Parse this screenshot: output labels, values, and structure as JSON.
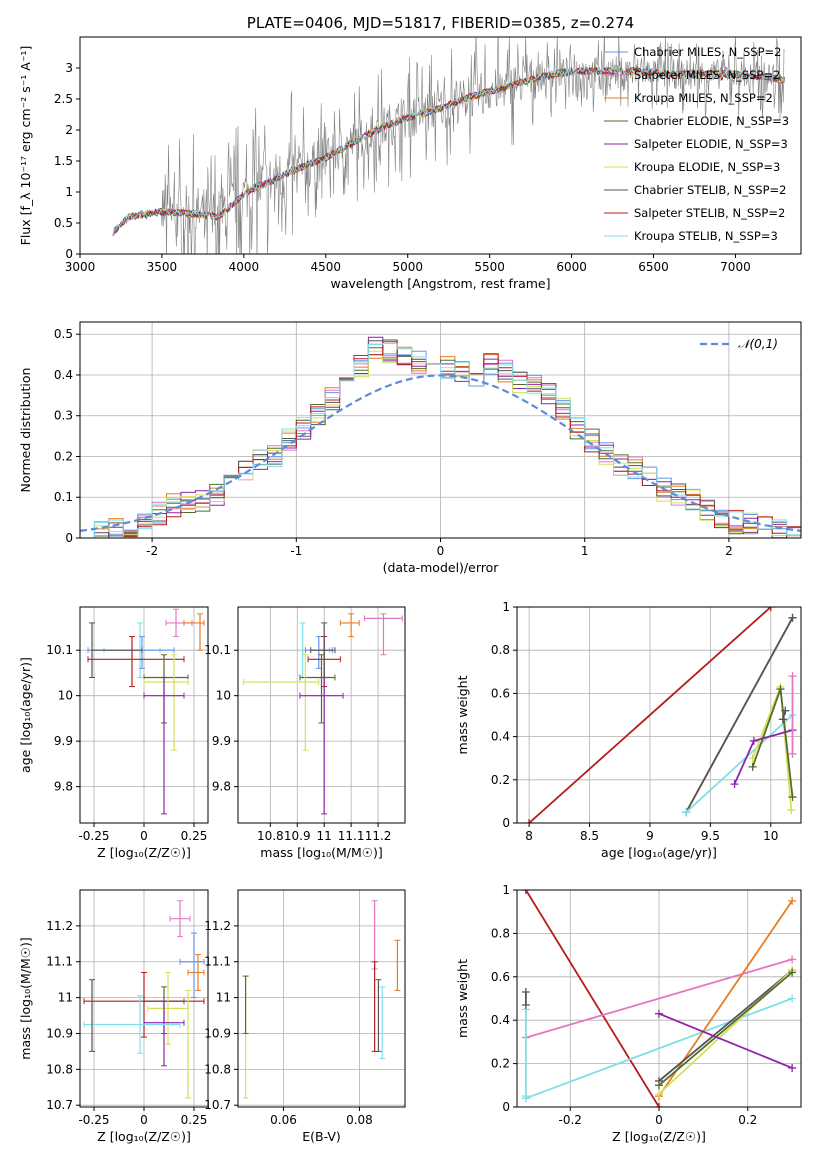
{
  "chart_data": [
    {
      "type": "line",
      "title": "PLATE=0406, MJD=51817, FIBERID=0385, z=0.274",
      "xlabel": "wavelength [Angstrom, rest frame]",
      "ylabel": "Flux [f_λ 10⁻¹⁷ erg cm⁻² s⁻¹ A⁻¹]",
      "xlim": [
        3000,
        7400
      ],
      "ylim": [
        0,
        3.5
      ],
      "xticks": [
        3000,
        3500,
        4000,
        4500,
        5000,
        5500,
        6000,
        6500,
        7000
      ],
      "yticks": [
        0.0,
        0.5,
        1.0,
        1.5,
        2.0,
        2.5,
        3.0
      ],
      "grid": false,
      "legend_position": "top-right",
      "data_color": "#808080",
      "data_range": [
        3200,
        7300
      ],
      "continuum": {
        "x": [
          3200,
          3300,
          3500,
          3700,
          3850,
          3950,
          4050,
          4150,
          4300,
          4500,
          4700,
          4850,
          5000,
          5200,
          5400,
          5600,
          5800,
          6000,
          6200,
          6400,
          6600,
          6800,
          7000,
          7200,
          7300
        ],
        "y": [
          0.35,
          0.6,
          0.68,
          0.65,
          0.6,
          0.85,
          1.05,
          1.15,
          1.35,
          1.55,
          1.85,
          2.05,
          2.2,
          2.35,
          2.55,
          2.7,
          2.85,
          2.95,
          2.95,
          2.95,
          2.9,
          2.9,
          2.9,
          2.85,
          2.8
        ]
      },
      "series": [
        {
          "name": "Chabrier MILES, N_SSP=2",
          "color": "#6495ED"
        },
        {
          "name": "Salpeter MILES, N_SSP=2",
          "color": "#E377C2"
        },
        {
          "name": "Kroupa MILES, N_SSP=2",
          "color": "#E67E22"
        },
        {
          "name": "Chabrier ELODIE, N_SSP=3",
          "color": "#556B2F"
        },
        {
          "name": "Salpeter ELODIE, N_SSP=3",
          "color": "#8E24AA"
        },
        {
          "name": "Kroupa ELODIE, N_SSP=3",
          "color": "#D4E157"
        },
        {
          "name": "Chabrier STELIB, N_SSP=2",
          "color": "#555555"
        },
        {
          "name": "Salpeter STELIB, N_SSP=2",
          "color": "#B71C1C"
        },
        {
          "name": "Kroupa STELIB, N_SSP=3",
          "color": "#80DEEA"
        }
      ]
    },
    {
      "type": "histogram",
      "xlabel": "(data-model)/error",
      "ylabel": "Normed distribution",
      "xlim": [
        -2.5,
        2.5
      ],
      "ylim": [
        0,
        0.53
      ],
      "xticks": [
        -2,
        -1,
        0,
        1,
        2
      ],
      "yticks": [
        0.0,
        0.1,
        0.2,
        0.3,
        0.4,
        0.5
      ],
      "grid": true,
      "legend_position": "top-right",
      "reference_curve": {
        "name": "𝒩(0,1)",
        "color": "#5B8BD9",
        "style": "dashed"
      },
      "bin_width": 0.1,
      "bin_centers": [
        -2.45,
        -2.35,
        -2.25,
        -2.15,
        -2.05,
        -1.95,
        -1.85,
        -1.75,
        -1.65,
        -1.55,
        -1.45,
        -1.35,
        -1.25,
        -1.15,
        -1.05,
        -0.95,
        -0.85,
        -0.75,
        -0.65,
        -0.55,
        -0.45,
        -0.35,
        -0.25,
        -0.15,
        -0.05,
        0.05,
        0.15,
        0.25,
        0.35,
        0.45,
        0.55,
        0.65,
        0.75,
        0.85,
        0.95,
        1.05,
        1.15,
        1.25,
        1.35,
        1.45,
        1.55,
        1.65,
        1.75,
        1.85,
        1.95,
        2.05,
        2.15,
        2.25,
        2.35,
        2.45
      ],
      "values": [
        0.01,
        0.01,
        0.02,
        0.03,
        0.04,
        0.06,
        0.08,
        0.09,
        0.09,
        0.11,
        0.14,
        0.16,
        0.19,
        0.2,
        0.24,
        0.27,
        0.3,
        0.34,
        0.38,
        0.42,
        0.47,
        0.46,
        0.45,
        0.43,
        0.43,
        0.42,
        0.41,
        0.4,
        0.43,
        0.41,
        0.38,
        0.37,
        0.35,
        0.32,
        0.27,
        0.24,
        0.21,
        0.18,
        0.17,
        0.15,
        0.12,
        0.11,
        0.09,
        0.07,
        0.05,
        0.04,
        0.04,
        0.03,
        0.02,
        0.01
      ],
      "series_colors": [
        "#6495ED",
        "#E377C2",
        "#E67E22",
        "#556B2F",
        "#8E24AA",
        "#D4E157",
        "#555555",
        "#B71C1C",
        "#80DEEA"
      ]
    },
    {
      "type": "scatter",
      "xlabel": "Z [log₁₀(Z/Z☉)]",
      "ylabel": "age  [log₁₀(age/yr)]",
      "xlim": [
        -0.32,
        0.32
      ],
      "ylim": [
        9.72,
        10.195
      ],
      "xticks": [
        -0.25,
        0.0,
        0.25
      ],
      "yticks": [
        9.8,
        9.9,
        10.0,
        10.1
      ],
      "grid": true,
      "points": [
        {
          "x": -0.02,
          "y": 10.1,
          "xerr": [
            0.18,
            0.1
          ],
          "yerr": [
            0.06,
            0.06
          ],
          "color": "#80DEEA"
        },
        {
          "x": 0.16,
          "y": 10.16,
          "xerr": [
            0.05,
            0.08
          ],
          "yerr": [
            0.03,
            0.03
          ],
          "color": "#E377C2"
        },
        {
          "x": 0.28,
          "y": 10.16,
          "xerr": [
            0.08,
            0.02
          ],
          "yerr": [
            0.06,
            0.02
          ],
          "color": "#E67E22"
        },
        {
          "x": -0.01,
          "y": 10.1,
          "xerr": [
            0.27,
            0.16
          ],
          "yerr": [
            0.04,
            0.03
          ],
          "color": "#6495ED"
        },
        {
          "x": -0.06,
          "y": 10.08,
          "xerr": [
            0.22,
            0.26
          ],
          "yerr": [
            0.06,
            0.05
          ],
          "color": "#B71C1C"
        },
        {
          "x": 0.1,
          "y": 10.04,
          "xerr": [
            0.1,
            0.12
          ],
          "yerr": [
            0.1,
            0.05
          ],
          "color": "#556B2F"
        },
        {
          "x": 0.15,
          "y": 10.03,
          "xerr": [
            0.15,
            0.07
          ],
          "yerr": [
            0.15,
            0.06
          ],
          "color": "#D4E157"
        },
        {
          "x": 0.1,
          "y": 10.0,
          "xerr": [
            0.1,
            0.1
          ],
          "yerr": [
            0.26,
            0.04
          ],
          "color": "#8E24AA"
        },
        {
          "x": -0.26,
          "y": 10.1,
          "xerr": [
            0.0,
            0.25
          ],
          "yerr": [
            0.06,
            0.06
          ],
          "color": "#555555"
        }
      ]
    },
    {
      "type": "scatter",
      "xlabel": "mass [log₁₀(M/M☉)]",
      "ylabel": "",
      "xlim": [
        10.68,
        11.3
      ],
      "ylim": [
        9.72,
        10.195
      ],
      "xticks": [
        10.8,
        10.9,
        11.0,
        11.1,
        11.2
      ],
      "yticks": [
        9.8,
        9.9,
        10.0,
        10.1
      ],
      "grid": true,
      "points": [
        {
          "x": 10.92,
          "y": 10.1,
          "xerr": [
            0.0,
            0.1
          ],
          "yerr": [
            0.06,
            0.06
          ],
          "color": "#80DEEA"
        },
        {
          "x": 11.22,
          "y": 10.17,
          "xerr": [
            0.07,
            0.07
          ],
          "yerr": [
            0.08,
            0.01
          ],
          "color": "#E377C2"
        },
        {
          "x": 11.1,
          "y": 10.16,
          "xerr": [
            0.04,
            0.03
          ],
          "yerr": [
            0.03,
            0.02
          ],
          "color": "#E67E22"
        },
        {
          "x": 10.98,
          "y": 10.1,
          "xerr": [
            0.05,
            0.05
          ],
          "yerr": [
            0.04,
            0.03
          ],
          "color": "#6495ED"
        },
        {
          "x": 11.0,
          "y": 10.08,
          "xerr": [
            0.06,
            0.06
          ],
          "yerr": [
            0.06,
            0.05
          ],
          "color": "#B71C1C"
        },
        {
          "x": 10.99,
          "y": 10.04,
          "xerr": [
            0.08,
            0.05
          ],
          "yerr": [
            0.1,
            0.05
          ],
          "color": "#556B2F"
        },
        {
          "x": 10.93,
          "y": 10.03,
          "xerr": [
            0.23,
            0.05
          ],
          "yerr": [
            0.15,
            0.06
          ],
          "color": "#D4E157"
        },
        {
          "x": 11.0,
          "y": 10.0,
          "xerr": [
            0.09,
            0.07
          ],
          "yerr": [
            0.26,
            0.04
          ],
          "color": "#8E24AA"
        },
        {
          "x": 11.0,
          "y": 10.1,
          "xerr": [
            0.05,
            0.04
          ],
          "yerr": [
            0.06,
            0.06
          ],
          "color": "#555555"
        }
      ]
    },
    {
      "type": "line",
      "xlabel": "age  [log₁₀(age/yr)]",
      "ylabel": "mass weight",
      "xlim": [
        7.9,
        10.25
      ],
      "ylim": [
        0,
        1.0
      ],
      "xticks": [
        8.0,
        8.5,
        9.0,
        9.5,
        10.0
      ],
      "yticks": [
        0.0,
        0.2,
        0.4,
        0.6,
        0.8,
        1.0
      ],
      "grid": true,
      "series": [
        {
          "color": "#B71C1C",
          "points": [
            [
              8.0,
              0.0
            ],
            [
              10.0,
              1.0
            ]
          ]
        },
        {
          "color": "#E67E22",
          "points": [
            [
              9.3,
              0.05
            ],
            [
              10.18,
              0.95
            ]
          ]
        },
        {
          "color": "#555555",
          "points": [
            [
              9.3,
              0.05
            ],
            [
              10.18,
              0.95
            ]
          ]
        },
        {
          "color": "#80DEEA",
          "points": [
            [
              9.3,
              0.05
            ],
            [
              10.18,
              0.5
            ]
          ]
        },
        {
          "color": "#D4E157",
          "points": [
            [
              9.85,
              0.3
            ],
            [
              10.08,
              0.63
            ],
            [
              10.17,
              0.06
            ]
          ]
        },
        {
          "color": "#556B2F",
          "points": [
            [
              9.85,
              0.26
            ],
            [
              10.08,
              0.62
            ],
            [
              10.18,
              0.12
            ]
          ]
        },
        {
          "color": "#8E24AA",
          "points": [
            [
              9.7,
              0.18
            ],
            [
              9.86,
              0.38
            ],
            [
              10.18,
              0.43
            ]
          ]
        },
        {
          "color": "#E377C2",
          "points": [
            [
              10.18,
              0.32
            ],
            [
              10.18,
              0.68
            ]
          ]
        },
        {
          "color": "#555555",
          "points": [
            [
              10.1,
              0.48
            ],
            [
              10.12,
              0.52
            ]
          ]
        }
      ]
    },
    {
      "type": "scatter",
      "xlabel": "Z [log₁₀(Z/Z☉)]",
      "ylabel": "mass [log₁₀(M/M☉)]",
      "xlim": [
        -0.32,
        0.32
      ],
      "ylim": [
        10.695,
        11.3
      ],
      "xticks": [
        -0.25,
        0.0,
        0.25
      ],
      "yticks": [
        10.7,
        10.8,
        10.9,
        11.0,
        11.1,
        11.2
      ],
      "grid": true,
      "points": [
        {
          "x": 0.18,
          "y": 11.22,
          "xerr": [
            0.05,
            0.05
          ],
          "yerr": [
            0.05,
            0.05
          ],
          "color": "#E377C2"
        },
        {
          "x": 0.27,
          "y": 11.07,
          "xerr": [
            0.05,
            0.03
          ],
          "yerr": [
            0.05,
            0.05
          ],
          "color": "#E67E22"
        },
        {
          "x": 0.25,
          "y": 11.1,
          "xerr": [
            0.07,
            0.05
          ],
          "yerr": [
            0.1,
            0.08
          ],
          "color": "#6495ED"
        },
        {
          "x": 0.1,
          "y": 10.99,
          "xerr": [
            0.1,
            0.1
          ],
          "yerr": [
            0.09,
            0.04
          ],
          "color": "#556B2F"
        },
        {
          "x": 0.0,
          "y": 10.99,
          "xerr": [
            0.3,
            0.3
          ],
          "yerr": [
            0.1,
            0.08
          ],
          "color": "#B71C1C"
        },
        {
          "x": 0.12,
          "y": 10.97,
          "xerr": [
            0.1,
            0.1
          ],
          "yerr": [
            0.1,
            0.1
          ],
          "color": "#D4E157"
        },
        {
          "x": 0.22,
          "y": 10.92,
          "xerr": [
            0.0,
            0.0
          ],
          "yerr": [
            0.2,
            0.1
          ],
          "color": "#D4E157"
        },
        {
          "x": 0.1,
          "y": 10.93,
          "xerr": [
            0.1,
            0.1
          ],
          "yerr": [
            0.12,
            0.06
          ],
          "color": "#8E24AA"
        },
        {
          "x": -0.02,
          "y": 10.925,
          "xerr": [
            0.28,
            0.2
          ],
          "yerr": [
            0.08,
            0.08
          ],
          "color": "#80DEEA"
        },
        {
          "x": -0.26,
          "y": 10.95,
          "xerr": [
            0.0,
            0.0
          ],
          "yerr": [
            0.1,
            0.1
          ],
          "color": "#555555"
        }
      ]
    },
    {
      "type": "scatter",
      "xlabel": "E(B-V)",
      "ylabel": "",
      "xlim": [
        0.048,
        0.092
      ],
      "ylim": [
        10.695,
        11.3
      ],
      "xticks": [
        0.06,
        0.08
      ],
      "yticks": [
        10.7,
        10.8,
        10.9,
        11.0,
        11.1,
        11.2
      ],
      "grid": true,
      "points": [
        {
          "x": 0.05,
          "y": 10.9,
          "yerr": [
            0.18,
            0.16
          ],
          "color": "#D4E157"
        },
        {
          "x": 0.05,
          "y": 10.98,
          "yerr": [
            0.08,
            0.08
          ],
          "color": "#556B2F"
        },
        {
          "x": 0.084,
          "y": 11.18,
          "yerr": [
            0.1,
            0.09
          ],
          "color": "#E377C2"
        },
        {
          "x": 0.084,
          "y": 11.0,
          "yerr": [
            0.15,
            0.1
          ],
          "color": "#B71C1C"
        },
        {
          "x": 0.085,
          "y": 10.95,
          "yerr": [
            0.1,
            0.1
          ],
          "color": "#555555"
        },
        {
          "x": 0.086,
          "y": 10.93,
          "yerr": [
            0.1,
            0.1
          ],
          "color": "#80DEEA"
        },
        {
          "x": 0.09,
          "y": 11.1,
          "yerr": [
            0.08,
            0.06
          ],
          "color": "#E67E22"
        }
      ]
    },
    {
      "type": "line",
      "xlabel": "Z [log₁₀(Z/Z☉)]",
      "ylabel": "mass weight",
      "xlim": [
        -0.32,
        0.32
      ],
      "ylim": [
        0,
        1.0
      ],
      "xticks": [
        -0.2,
        0.0,
        0.2
      ],
      "yticks": [
        0.0,
        0.2,
        0.4,
        0.6,
        0.8,
        1.0
      ],
      "grid": true,
      "series": [
        {
          "color": "#B71C1C",
          "points": [
            [
              -0.3,
              1.0
            ],
            [
              0.0,
              0.0
            ]
          ]
        },
        {
          "color": "#E377C2",
          "points": [
            [
              -0.3,
              0.32
            ],
            [
              0.3,
              0.68
            ]
          ]
        },
        {
          "color": "#80DEEA",
          "points": [
            [
              -0.3,
              0.04
            ],
            [
              0.3,
              0.5
            ]
          ]
        },
        {
          "color": "#80DEEA",
          "points": [
            [
              -0.3,
              0.05
            ],
            [
              -0.3,
              0.45
            ]
          ]
        },
        {
          "color": "#E67E22",
          "points": [
            [
              0.0,
              0.05
            ],
            [
              0.3,
              0.95
            ]
          ]
        },
        {
          "color": "#555555",
          "points": [
            [
              0.0,
              0.12
            ],
            [
              0.3,
              0.63
            ]
          ]
        },
        {
          "color": "#D4E157",
          "points": [
            [
              0.0,
              0.06
            ],
            [
              0.3,
              0.63
            ]
          ]
        },
        {
          "color": "#556B2F",
          "points": [
            [
              0.0,
              0.1
            ],
            [
              0.3,
              0.62
            ]
          ]
        },
        {
          "color": "#8E24AA",
          "points": [
            [
              0.0,
              0.43
            ],
            [
              0.3,
              0.18
            ]
          ]
        },
        {
          "color": "#555555",
          "points": [
            [
              -0.3,
              0.47
            ],
            [
              -0.3,
              0.53
            ]
          ]
        }
      ]
    }
  ]
}
